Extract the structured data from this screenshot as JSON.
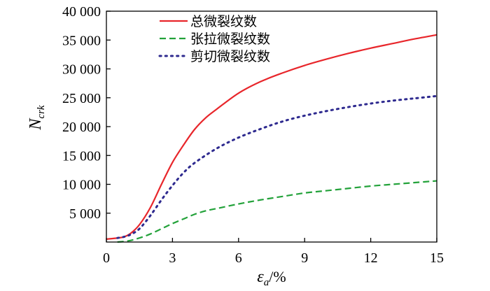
{
  "chart_data": {
    "type": "line",
    "xlabel": {
      "symbol": "ε",
      "subscript": "a",
      "unit": "/%"
    },
    "ylabel": {
      "symbol": "N",
      "subscript": "crk"
    },
    "xlim": [
      0,
      15
    ],
    "ylim": [
      0,
      40000
    ],
    "xticks": [
      0,
      3,
      6,
      9,
      12,
      15
    ],
    "xtick_labels": [
      "0",
      "3",
      "6",
      "9",
      "12",
      "15"
    ],
    "yticks": [
      5000,
      10000,
      15000,
      20000,
      25000,
      30000,
      35000,
      40000
    ],
    "ytick_labels": [
      "5 000",
      "10 000",
      "15 000",
      "20 000",
      "25 000",
      "30 000",
      "35 000",
      "40 000"
    ],
    "grid": false,
    "legend_position": "top-center",
    "series": [
      {
        "name": "总微裂纹数",
        "color": "#e8262b",
        "dash": "solid",
        "x": [
          0,
          0.5,
          0.8,
          1.1,
          1.5,
          2.0,
          2.5,
          3.0,
          3.5,
          4.0,
          4.5,
          5.0,
          6.0,
          7.0,
          8.0,
          9.0,
          10.0,
          11.0,
          12.0,
          13.0,
          14.0,
          15.0
        ],
        "y": [
          500,
          700,
          900,
          1500,
          3000,
          6000,
          10000,
          13800,
          16800,
          19500,
          21500,
          23000,
          25800,
          27800,
          29300,
          30600,
          31700,
          32700,
          33600,
          34400,
          35200,
          35900
        ]
      },
      {
        "name": "张拉微裂纹数",
        "color": "#23a23a",
        "dash": "dashed",
        "x": [
          0.5,
          1.0,
          1.5,
          2.0,
          2.5,
          3.0,
          3.5,
          4.0,
          4.5,
          5.0,
          6.0,
          7.0,
          8.0,
          9.0,
          10.0,
          11.0,
          12.0,
          13.0,
          14.0,
          15.0
        ],
        "y": [
          0,
          200,
          700,
          1400,
          2300,
          3200,
          4000,
          4800,
          5400,
          5800,
          6600,
          7300,
          7900,
          8500,
          8900,
          9300,
          9700,
          10000,
          10300,
          10600
        ]
      },
      {
        "name": "剪切微裂纹数",
        "color": "#2e2a8f",
        "dash": "dotted",
        "x": [
          0.5,
          0.8,
          1.1,
          1.5,
          2.0,
          2.5,
          3.0,
          3.5,
          4.0,
          5.0,
          6.0,
          7.0,
          8.0,
          9.0,
          10.0,
          11.0,
          12.0,
          13.0,
          14.0,
          15.0
        ],
        "y": [
          700,
          900,
          1300,
          2300,
          4600,
          7300,
          9800,
          12000,
          13700,
          16200,
          18100,
          19600,
          20900,
          21900,
          22700,
          23400,
          24000,
          24500,
          24900,
          25300
        ]
      }
    ]
  }
}
